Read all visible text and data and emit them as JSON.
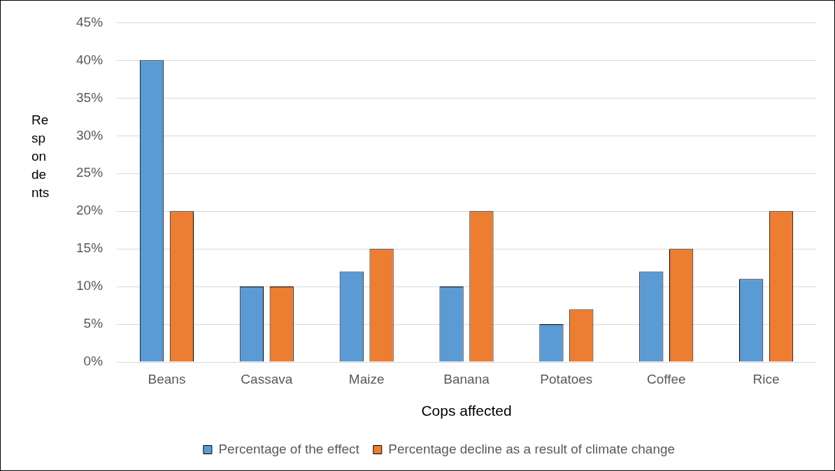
{
  "chart_data": {
    "type": "bar",
    "xlabel": "Cops affected",
    "ylabel": "Respondents",
    "categories": [
      "Beans",
      "Cassava",
      "Maize",
      "Banana",
      "Potatoes",
      "Coffee",
      "Rice"
    ],
    "series": [
      {
        "name": "Percentage of the effect",
        "color": "#5b9bd5",
        "values": [
          40,
          10,
          12,
          10,
          5,
          12,
          11
        ]
      },
      {
        "name": "Percentage decline as a result of climate change",
        "color": "#ed7d31",
        "values": [
          20,
          10,
          15,
          20,
          7,
          15,
          20
        ]
      }
    ],
    "ylim": [
      0,
      45
    ],
    "yticks": [
      {
        "value": 0,
        "label": "0%"
      },
      {
        "value": 5,
        "label": "5%"
      },
      {
        "value": 10,
        "label": "10%"
      },
      {
        "value": 15,
        "label": "15%"
      },
      {
        "value": 20,
        "label": "20%"
      },
      {
        "value": 25,
        "label": "25%"
      },
      {
        "value": 30,
        "label": "30%"
      },
      {
        "value": 35,
        "label": "35%"
      },
      {
        "value": 40,
        "label": "40%"
      },
      {
        "value": 45,
        "label": "45%"
      }
    ],
    "grid": "y",
    "legend": "bottom"
  }
}
